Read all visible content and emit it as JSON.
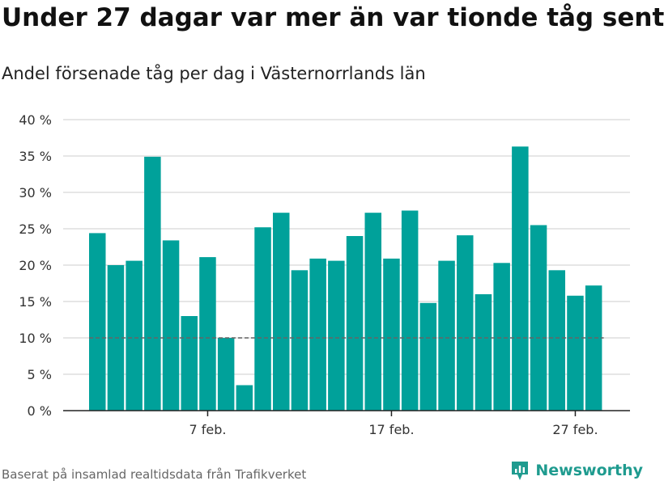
{
  "title": "Under 27 dagar var mer än var tionde tåg sent",
  "subtitle": "Andel försenade tåg per dag i Västernorrlands län",
  "source": "Baserat på insamlad realtidsdata från Trafikverket",
  "brand": "Newsworthy",
  "colors": {
    "bar": "#00a19a",
    "grid": "#dddddd",
    "reference_line": "#666666",
    "brand": "#1f9b8f"
  },
  "chart_data": {
    "type": "bar",
    "categories": [
      "1 feb.",
      "2 feb.",
      "3 feb.",
      "4 feb.",
      "5 feb.",
      "6 feb.",
      "7 feb.",
      "8 feb.",
      "9 feb.",
      "10 feb.",
      "11 feb.",
      "12 feb.",
      "13 feb.",
      "14 feb.",
      "15 feb.",
      "16 feb.",
      "17 feb.",
      "18 feb.",
      "19 feb.",
      "20 feb.",
      "21 feb.",
      "22 feb.",
      "23 feb.",
      "24 feb.",
      "25 feb.",
      "26 feb.",
      "27 feb.",
      "28 feb."
    ],
    "values": [
      24.4,
      20.0,
      20.6,
      34.9,
      23.4,
      13.0,
      21.1,
      10.0,
      3.5,
      25.2,
      27.2,
      19.3,
      20.9,
      20.6,
      24.0,
      27.2,
      20.9,
      27.5,
      14.8,
      20.6,
      24.1,
      16.0,
      20.3,
      36.3,
      25.5,
      19.3,
      15.8,
      17.2
    ],
    "x_ticks": [
      "7 feb.",
      "17 feb.",
      "27 feb."
    ],
    "y_ticks": [
      "0 %",
      "5 %",
      "10 %",
      "15 %",
      "20 %",
      "25 %",
      "30 %",
      "35 %",
      "40 %"
    ],
    "ylim": [
      0,
      40
    ],
    "reference_line": 10,
    "unit": "%",
    "grid": true,
    "legend": false
  }
}
